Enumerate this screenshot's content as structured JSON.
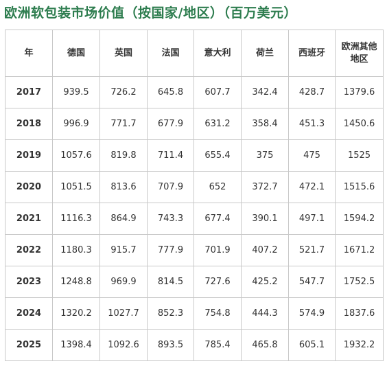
{
  "title": "欧洲软包装市场价值（按国家/地区）（百万美元）",
  "table": {
    "headers": [
      "年",
      "德国",
      "英国",
      "法国",
      "意大利",
      "荷兰",
      "西班牙",
      "欧洲其他地区"
    ],
    "rows": [
      [
        "2017",
        "939.5",
        "726.2",
        "645.8",
        "607.7",
        "342.4",
        "428.7",
        "1379.6"
      ],
      [
        "2018",
        "996.9",
        "771.7",
        "677.9",
        "631.2",
        "358.4",
        "451.3",
        "1450.6"
      ],
      [
        "2019",
        "1057.6",
        "819.8",
        "711.4",
        "655.4",
        "375",
        "475",
        "1525"
      ],
      [
        "2020",
        "1051.5",
        "813.6",
        "707.9",
        "652",
        "372.7",
        "472.1",
        "1515.6"
      ],
      [
        "2021",
        "1116.3",
        "864.9",
        "743.3",
        "677.4",
        "390.1",
        "497.1",
        "1594.2"
      ],
      [
        "2022",
        "1180.3",
        "915.7",
        "777.9",
        "701.9",
        "407.2",
        "521.7",
        "1671.2"
      ],
      [
        "2023",
        "1248.8",
        "969.9",
        "814.5",
        "727.6",
        "425.2",
        "547.7",
        "1752.5"
      ],
      [
        "2024",
        "1320.2",
        "1027.7",
        "852.3",
        "754.8",
        "444.3",
        "574.9",
        "1837.6"
      ],
      [
        "2025",
        "1398.4",
        "1092.6",
        "893.5",
        "785.4",
        "465.8",
        "605.1",
        "1932.2"
      ]
    ]
  }
}
